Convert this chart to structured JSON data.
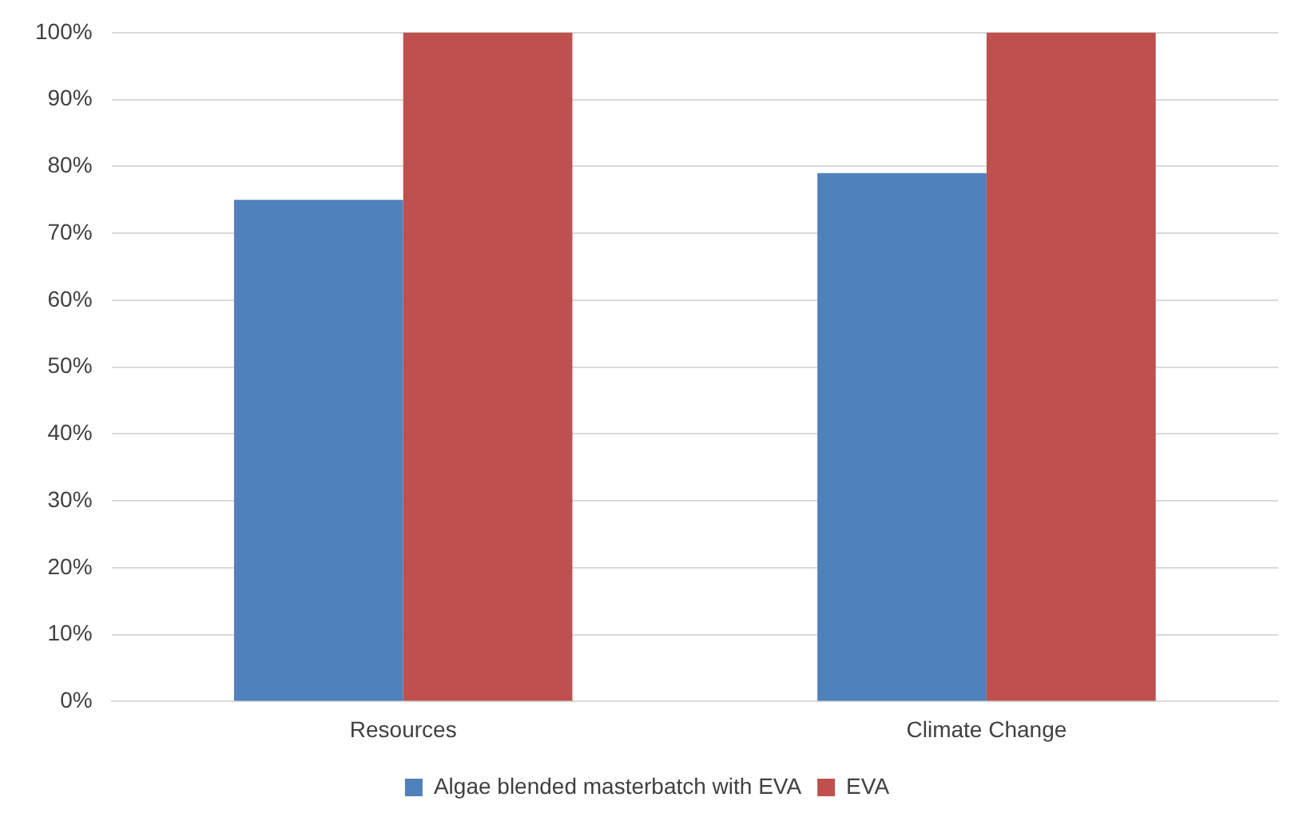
{
  "chart_data": {
    "type": "bar",
    "categories": [
      "Resources",
      "Climate Change"
    ],
    "series": [
      {
        "name": "Algae blended masterbatch with EVA",
        "color": "#4f81bd",
        "values": [
          75,
          79
        ]
      },
      {
        "name": "EVA",
        "color": "#c0504d",
        "values": [
          100,
          100
        ]
      }
    ],
    "ylim": [
      0,
      100
    ],
    "yticks": [
      {
        "value": 0,
        "label": "0%"
      },
      {
        "value": 10,
        "label": "10%"
      },
      {
        "value": 20,
        "label": "20%"
      },
      {
        "value": 30,
        "label": "30%"
      },
      {
        "value": 40,
        "label": "40%"
      },
      {
        "value": 50,
        "label": "50%"
      },
      {
        "value": 60,
        "label": "60%"
      },
      {
        "value": 70,
        "label": "70%"
      },
      {
        "value": 80,
        "label": "80%"
      },
      {
        "value": 90,
        "label": "90%"
      },
      {
        "value": 100,
        "label": "100%"
      }
    ],
    "grid": "y",
    "legend": "bottom"
  }
}
